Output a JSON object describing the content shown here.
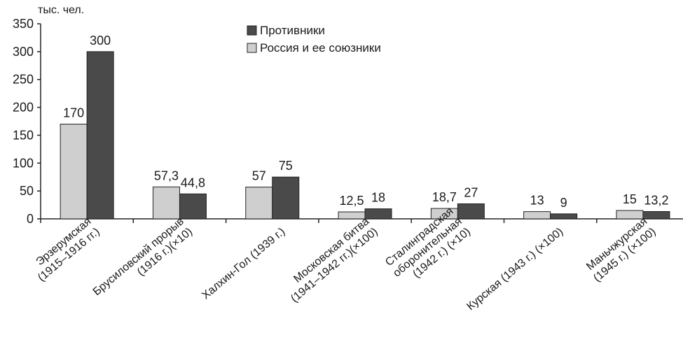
{
  "chart_data": {
    "type": "bar",
    "unit": "тыс. чел.",
    "ylim": [
      0,
      350
    ],
    "yticks": [
      "0",
      "50",
      "100",
      "150",
      "200",
      "250",
      "300",
      "350"
    ],
    "yticks_values": [
      0,
      50,
      100,
      150,
      200,
      250,
      300,
      350
    ],
    "categories": [
      [
        "Эрзерумская",
        "(1915–1916 гг.)"
      ],
      [
        "Брусиловский прорыв",
        "(1916 г.)(×10)"
      ],
      [
        "Халхин-Гол (1939 г.)"
      ],
      [
        "Московская битва",
        "(1941–1942 гг.)(×100)"
      ],
      [
        "Сталинградская",
        "оборонительная",
        "(1942 г.) (×10)"
      ],
      [
        "Курская (1943 г.) (×100)"
      ],
      [
        "Маньчжурская",
        "(1945 г.) (×100)"
      ]
    ],
    "series": [
      {
        "name": "Россия и ее союзники",
        "color": "#cfcfcf",
        "values": [
          170,
          57.3,
          57,
          12.5,
          18.7,
          13,
          15
        ],
        "labels": [
          "170",
          "57,3",
          "57",
          "12,5",
          "18,7",
          "13",
          "15"
        ]
      },
      {
        "name": "Противники",
        "color": "#4a4a4a",
        "values": [
          300,
          44.8,
          75,
          18,
          27,
          9,
          13.2
        ],
        "labels": [
          "300",
          "44,8",
          "75",
          "18",
          "27",
          "9",
          "13,2"
        ]
      }
    ],
    "legend": [
      {
        "label": "Противники",
        "color": "#4a4a4a"
      },
      {
        "label": "Россия и ее союзники",
        "color": "#cfcfcf"
      }
    ],
    "grid": false,
    "legend_position": "top-center"
  }
}
